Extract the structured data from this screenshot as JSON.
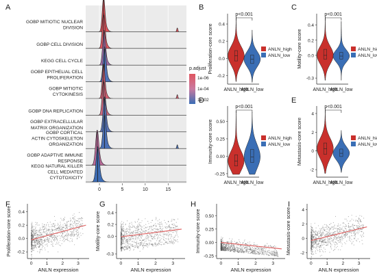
{
  "colors": {
    "high": "#c9302c",
    "low": "#3a6eb5",
    "regression": "#e06666",
    "scatter": "#555555",
    "gradient_top": "#e05560",
    "gradient_mid": "#c97aa0",
    "gradient_bottom": "#3a6eb5"
  },
  "chart_data": [
    {
      "panel": "A",
      "type": "ridgeline",
      "terms": [
        {
          "label": [
            "GOBP MITIOTIC NUCLEAR",
            "DIVISION"
          ],
          "peak": 0.9,
          "width": 0.28,
          "color": "#df5158",
          "blip": 17.0
        },
        {
          "label": [
            "GOBP CELL DIVISION"
          ],
          "peak": 0.9,
          "width": 0.3,
          "color": "#dc5a64"
        },
        {
          "label": [
            "KEGG CELL CYCLE"
          ],
          "peak": 1.0,
          "width": 0.3,
          "color": "#a06fa8"
        },
        {
          "label": [
            "GOBP EPITHELIAL CELL",
            "PROLIFERATION"
          ],
          "peak": 1.1,
          "width": 0.32,
          "color": "#4f73b8"
        },
        {
          "label": [
            "GOBP MITIOTIC",
            "CYTOKINESIS"
          ],
          "peak": 0.9,
          "width": 0.28,
          "color": "#d46071",
          "blip": 17.0
        },
        {
          "label": [
            "GOBP DNA REPLICATION"
          ],
          "peak": 0.9,
          "width": 0.3,
          "color": "#cc6a80"
        },
        {
          "label": [
            "GOBP EXTRACELLULAR",
            "MATRIX ORGANIZATION"
          ],
          "peak": 1.1,
          "width": 0.32,
          "color": "#5b74b8"
        },
        {
          "label": [
            "GOBP CORTICAL",
            "ACTIN CYTOSKELETON",
            "ORGANIZATION"
          ],
          "peak": 1.1,
          "width": 0.32,
          "color": "#4a70b6",
          "blip": 17.0
        },
        {
          "label": [
            "GOBP ADAPTIVE IMMUNE",
            "RESPONSE"
          ],
          "peak": -0.5,
          "width": 0.35,
          "color": "#b96b9a"
        },
        {
          "label": [
            "KEGG NATURAL KILLER",
            "CELL MEDIATED",
            "CYTOTOXICITY"
          ],
          "peak": -0.4,
          "width": 0.35,
          "color": "#3d6cb4"
        }
      ],
      "x_ticks": [
        "0",
        "5",
        "10",
        "15"
      ],
      "xlim": [
        -3,
        19
      ],
      "legend_title": "p.adjust",
      "legend_labels": [
        "1e-06",
        "1e-04",
        "1e-02"
      ]
    },
    {
      "panel": "B",
      "type": "violin",
      "ylabel": "Proliferation-core score",
      "yticks": [
        "-0.2",
        "0.0",
        "0.2",
        "0.4"
      ],
      "ytick_values": [
        -0.2,
        0.0,
        0.2,
        0.4
      ],
      "ylim": [
        -0.3,
        0.52
      ],
      "categories": [
        "ANLN_high",
        "ANLN_low"
      ],
      "series": [
        {
          "name": "ANLN_high",
          "median": 0.03,
          "q1": -0.03,
          "q3": 0.09,
          "min": -0.27,
          "max": 0.49
        },
        {
          "name": "ANLN_low",
          "median": -0.01,
          "q1": -0.06,
          "q3": 0.04,
          "min": -0.28,
          "max": 0.33
        }
      ],
      "pvalue": "p<0.001",
      "legend": [
        "ANLN_high",
        "ANLN_low"
      ]
    },
    {
      "panel": "C",
      "type": "violin",
      "ylabel": "Motility-core score",
      "yticks": [
        "-0.3",
        "0.0",
        "0.2",
        "0.4"
      ],
      "ytick_values": [
        -0.3,
        0.0,
        0.2,
        0.4
      ],
      "ylim": [
        -0.38,
        0.55
      ],
      "categories": [
        "ANLN_high",
        "ANLN_low"
      ],
      "series": [
        {
          "name": "ANLN_high",
          "median": 0.0,
          "q1": -0.05,
          "q3": 0.08,
          "min": -0.33,
          "max": 0.52
        },
        {
          "name": "ANLN_low",
          "median": -0.01,
          "q1": -0.05,
          "q3": 0.04,
          "min": -0.33,
          "max": 0.45
        }
      ],
      "pvalue": "p<0.001",
      "legend": [
        "ANLN_high",
        "ANLN_low"
      ]
    },
    {
      "panel": "D",
      "type": "violin",
      "ylabel": "Immunity-core score",
      "yticks": [
        "-0.25",
        "0.00",
        "0.25",
        "0.50"
      ],
      "ytick_values": [
        -0.25,
        0.0,
        0.25,
        0.5
      ],
      "ylim": [
        -0.3,
        0.72
      ],
      "categories": [
        "ANLN_high",
        "ANLN_low"
      ],
      "series": [
        {
          "name": "ANLN_high",
          "median": -0.07,
          "q1": -0.14,
          "q3": 0.02,
          "min": -0.26,
          "max": 0.65
        },
        {
          "name": "ANLN_low",
          "median": -0.01,
          "q1": -0.09,
          "q3": 0.1,
          "min": -0.26,
          "max": 0.63
        }
      ],
      "pvalue": "p<0.001",
      "legend": [
        "ANLN_high",
        "ANLN_low"
      ]
    },
    {
      "panel": "E",
      "type": "violin",
      "ylabel": "Metastasis-core score",
      "yticks": [
        "-2",
        "0",
        "2",
        "4"
      ],
      "ytick_values": [
        -2,
        0,
        2,
        4
      ],
      "ylim": [
        -2.8,
        4.8
      ],
      "categories": [
        "ANLN_high",
        "ANLN_low"
      ],
      "series": [
        {
          "name": "ANLN_high",
          "median": 0.25,
          "q1": -0.35,
          "q3": 0.85,
          "min": -2.4,
          "max": 4.6
        },
        {
          "name": "ANLN_low",
          "median": -0.25,
          "q1": -0.6,
          "q3": 0.2,
          "min": -2.3,
          "max": 2.2
        }
      ],
      "pvalue": "p<0.001",
      "legend": [
        "ANLN_high",
        "ANLN_low"
      ]
    },
    {
      "panel": "F",
      "type": "scatter",
      "xlabel": "ANLN expression",
      "ylabel": "Proliferation-core score",
      "xticks": [
        "0",
        "1",
        "2",
        "3"
      ],
      "xtick_values": [
        0,
        1,
        2,
        3
      ],
      "yticks": [
        "-0.2",
        "0.0",
        "0.2",
        "0.4"
      ],
      "ytick_values": [
        -0.2,
        0.0,
        0.2,
        0.4
      ],
      "xlim": [
        -0.25,
        3.7
      ],
      "ylim": [
        -0.3,
        0.52
      ],
      "fit": {
        "x": [
          0,
          3.5
        ],
        "y": [
          -0.02,
          0.2
        ]
      }
    },
    {
      "panel": "G",
      "type": "scatter",
      "xlabel": "ANLN expression",
      "ylabel": "Motility-core score",
      "xticks": [
        "0",
        "1",
        "2",
        "3"
      ],
      "xtick_values": [
        0,
        1,
        2,
        3
      ],
      "yticks": [
        "-0.3",
        "0.0",
        "0.2",
        "0.4"
      ],
      "ytick_values": [
        -0.3,
        0.0,
        0.2,
        0.4
      ],
      "xlim": [
        -0.25,
        3.7
      ],
      "ylim": [
        -0.38,
        0.55
      ],
      "fit": {
        "x": [
          0,
          3.5
        ],
        "y": [
          -0.01,
          0.12
        ]
      }
    },
    {
      "panel": "H",
      "type": "scatter",
      "xlabel": "ANLN expression",
      "ylabel": "Immunity-core score",
      "xticks": [
        "0",
        "1",
        "2",
        "3"
      ],
      "xtick_values": [
        0,
        1,
        2,
        3
      ],
      "yticks": [
        "-0.25",
        "0.00",
        "0.25",
        "0.50"
      ],
      "ytick_values": [
        -0.25,
        0.0,
        0.25,
        0.5
      ],
      "xlim": [
        -0.25,
        3.7
      ],
      "ylim": [
        -0.3,
        0.72
      ],
      "fit": {
        "x": [
          0,
          3.5
        ],
        "y": [
          0.0,
          -0.12
        ]
      }
    },
    {
      "panel": "I",
      "type": "scatter",
      "xlabel": "ANLN expression",
      "ylabel": "Metastasis-core score",
      "xticks": [
        "0",
        "1",
        "2",
        "3"
      ],
      "xtick_values": [
        0,
        1,
        2,
        3
      ],
      "yticks": [
        "-2",
        "0",
        "2",
        "4"
      ],
      "ytick_values": [
        -2,
        0,
        2,
        4
      ],
      "xlim": [
        -0.25,
        3.7
      ],
      "ylim": [
        -2.8,
        4.8
      ],
      "fit": {
        "x": [
          0,
          3.5
        ],
        "y": [
          -0.3,
          1.6
        ]
      }
    }
  ]
}
